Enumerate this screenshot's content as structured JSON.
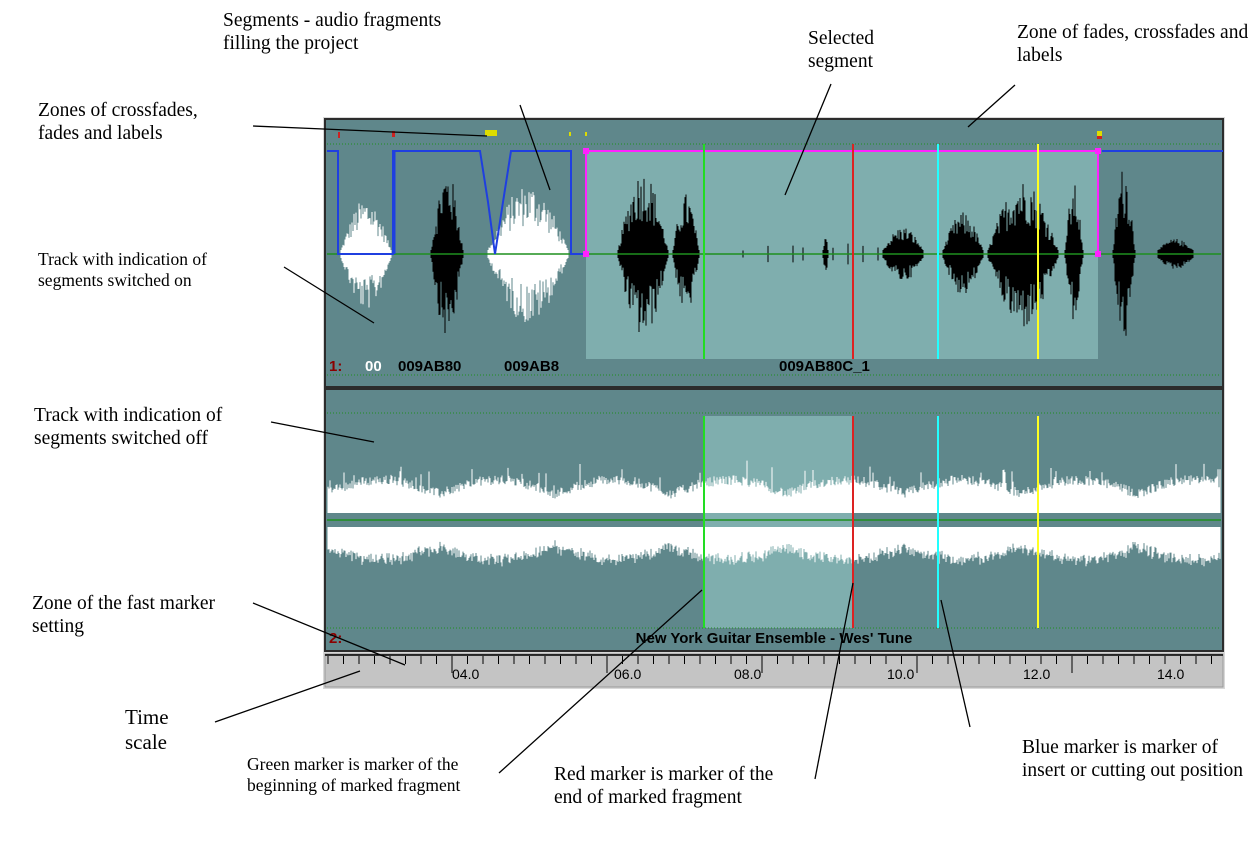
{
  "callouts": {
    "segments": "Segments - audio fragments filling the project",
    "selected_segment": "Selected segment",
    "zone_fades_right": "Zone of fades, crossfades and labels",
    "zones_crossfades_left": "Zones of crossfades, fades and labels",
    "track_switched_on": "Track with indication of segments switched on",
    "track_switched_off": "Track with indication of segments switched off",
    "fast_marker_zone": "Zone of the fast marker setting",
    "time_scale": "Time scale",
    "green_marker": "Green marker is marker of the beginning of marked fragment",
    "red_marker": "Red marker is marker of the end of marked fragment",
    "blue_marker": "Blue marker is marker of insert or cutting out position"
  },
  "track1": {
    "number": "1:",
    "segment_labels": [
      "00",
      "009AB80",
      "009AB8"
    ],
    "selected_segment_label": "009AB80C_1"
  },
  "track2": {
    "number": "2:",
    "title": "New York Guitar Ensemble - Wes' Tune"
  },
  "time_scale": {
    "ticks": [
      "04.0",
      "06.0",
      "08.0",
      "10.0",
      "12.0",
      "14.0"
    ]
  },
  "colors": {
    "track_bg": "#5f878b",
    "selected_bg": "#7faeae",
    "green_marker": "#22dd22",
    "red_marker": "#dd2222",
    "blue_marker": "#22ffff",
    "yellow_marker": "#ffff22",
    "segment_border": "#1f3fe0",
    "selected_border": "#ff22ff",
    "ruler_bg": "#c4c4c4"
  }
}
